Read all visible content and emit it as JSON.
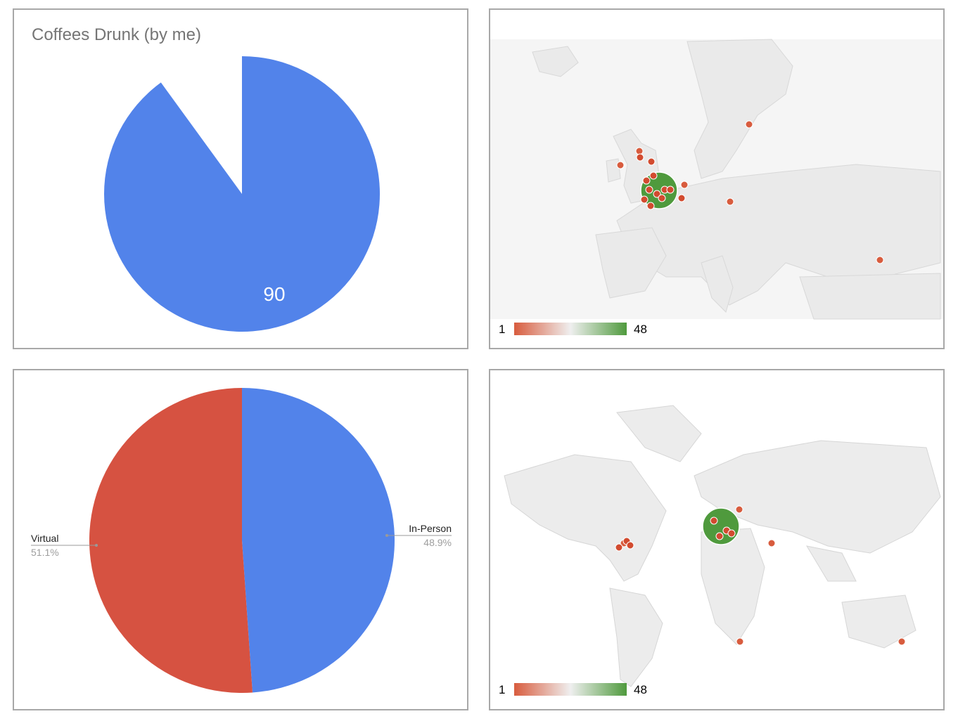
{
  "chart_data": [
    {
      "type": "pie",
      "title": "Coffees Drunk (by me)",
      "slices": [
        {
          "label": "",
          "value": 90,
          "color": "#5283ea"
        },
        {
          "label": "",
          "value": 10,
          "color": "#ffffff"
        }
      ],
      "data_labels": [
        "90"
      ]
    },
    {
      "type": "map",
      "region": "Europe",
      "color_axis": {
        "min": 1,
        "max": 48,
        "min_label": "1",
        "max_label": "48",
        "colors": [
          "#d85c3e",
          "#efefef",
          "#4f9a3d"
        ]
      },
      "markers": [
        {
          "place": "UK",
          "value": 48
        },
        {
          "place": "Ireland",
          "value": 1
        },
        {
          "place": "Scotland",
          "value": 1
        },
        {
          "place": "Sweden",
          "value": 1
        },
        {
          "place": "Netherlands",
          "value": 1
        },
        {
          "place": "Czechia",
          "value": 1
        },
        {
          "place": "Georgia",
          "value": 1
        }
      ]
    },
    {
      "type": "pie",
      "slices": [
        {
          "label": "In-Person",
          "percent": "48.9%",
          "value": 48.9,
          "color": "#5283ea"
        },
        {
          "label": "Virtual",
          "percent": "51.1%",
          "value": 51.1,
          "color": "#d65241"
        }
      ]
    },
    {
      "type": "map",
      "region": "World",
      "color_axis": {
        "min": 1,
        "max": 48,
        "min_label": "1",
        "max_label": "48",
        "colors": [
          "#d85c3e",
          "#efefef",
          "#4f9a3d"
        ]
      },
      "markers": [
        {
          "place": "UK",
          "value": 48
        },
        {
          "place": "USA (East)",
          "value": 1
        },
        {
          "place": "Sweden",
          "value": 1
        },
        {
          "place": "Georgia",
          "value": 1
        },
        {
          "place": "South Africa",
          "value": 1
        },
        {
          "place": "Australia",
          "value": 1
        }
      ]
    }
  ]
}
